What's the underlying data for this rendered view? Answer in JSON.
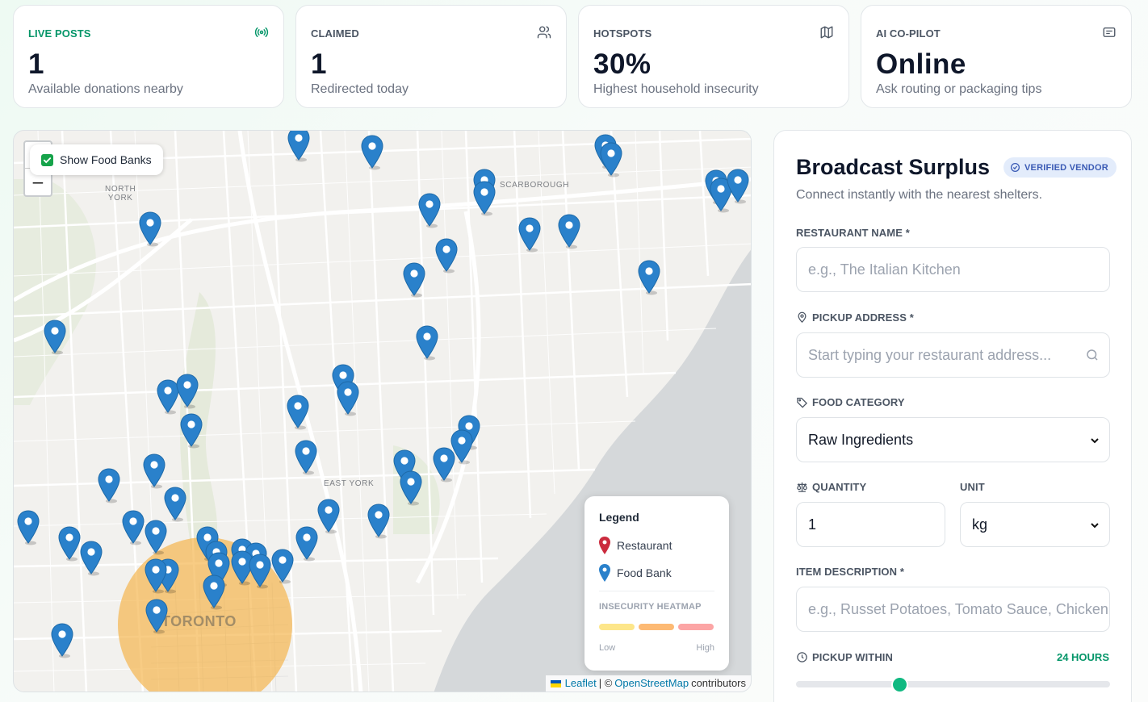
{
  "stats": [
    {
      "label": "LIVE POSTS",
      "value": "1",
      "sub": "Available donations nearby",
      "icon": "broadcast-icon"
    },
    {
      "label": "CLAIMED",
      "value": "1",
      "sub": "Redirected today",
      "icon": "users-icon"
    },
    {
      "label": "HOTSPOTS",
      "value": "30%",
      "sub": "Highest household insecurity",
      "icon": "map-icon"
    },
    {
      "label": "AI CO-PILOT",
      "value": "Online",
      "sub": "Ask routing or packaging tips",
      "icon": "message-icon"
    }
  ],
  "map": {
    "toggle_label": "Show Food Banks",
    "toggle_checked": true,
    "zoom_in": "+",
    "zoom_out": "−",
    "places": {
      "north_york": "NORTH\nYORK",
      "scarborough": "SCARBOROUGH",
      "east_york": "EAST YORK",
      "toronto": "TORONTO"
    },
    "legend": {
      "title": "Legend",
      "restaurant": "Restaurant",
      "food_bank": "Food Bank",
      "heatmap_title": "INSECURITY HEATMAP",
      "low": "Low",
      "high": "High",
      "colors": [
        "#fde68a",
        "#fdba74",
        "#fca5a5"
      ]
    },
    "attribution": {
      "leaflet": "Leaflet",
      "sep": "| ©",
      "osm": "OpenStreetMap",
      "tail": "contributors"
    },
    "colors": {
      "marker": "#2a81cb",
      "restaurant": "#cb2b3e",
      "heat": "#f5b042"
    }
  },
  "form": {
    "title": "Broadcast Surplus",
    "badge": "VERIFIED VENDOR",
    "subtitle": "Connect instantly with the nearest shelters.",
    "restaurant_label": "RESTAURANT NAME *",
    "restaurant_placeholder": "e.g., The Italian Kitchen",
    "address_label": "PICKUP ADDRESS *",
    "address_placeholder": "Start typing your restaurant address...",
    "category_label": "FOOD CATEGORY",
    "category_value": "Raw Ingredients",
    "quantity_label": "QUANTITY",
    "quantity_value": "1",
    "unit_label": "UNIT",
    "unit_value": "kg",
    "description_label": "ITEM DESCRIPTION *",
    "description_placeholder": "e.g., Russet Potatoes, Tomato Sauce, Chicken",
    "pickup_label": "PICKUP WITHIN",
    "pickup_value": "24 HOURS",
    "pickup_fraction": 0.33
  }
}
